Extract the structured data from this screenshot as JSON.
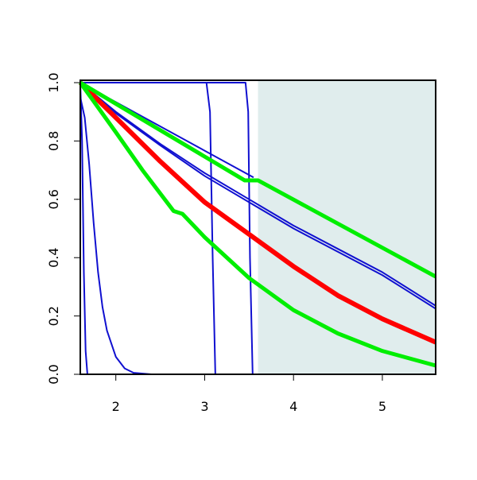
{
  "chart_data": {
    "type": "line",
    "xlim": [
      1.6,
      5.6
    ],
    "ylim": [
      0,
      1
    ],
    "xticks": [
      2,
      3,
      4,
      5
    ],
    "yticks": [
      {
        "value": 0,
        "label": "0.0"
      },
      {
        "value": 0.2,
        "label": "0.2"
      },
      {
        "value": 0.4,
        "label": "0.4"
      },
      {
        "value": 0.6,
        "label": "0.6"
      },
      {
        "value": 0.8,
        "label": "0.8"
      },
      {
        "value": 1,
        "label": "1.0"
      }
    ],
    "shaded_x": [
      3.6,
      5.6
    ],
    "shade_color": "#e0eded",
    "series": [
      {
        "color": "#1010d0",
        "width": 2,
        "x": [
          1.6,
          2,
          2.5,
          3,
          3.5,
          4,
          4.5,
          5,
          5.6
        ],
        "values": [
          1,
          0.9,
          0.79,
          0.69,
          0.6,
          0.51,
          0.43,
          0.35,
          0.235
        ]
      },
      {
        "color": "#1010d0",
        "width": 2,
        "x": [
          1.6,
          2,
          2.5,
          3,
          3.5,
          4,
          4.5,
          5,
          5.6
        ],
        "values": [
          1,
          0.895,
          0.785,
          0.68,
          0.59,
          0.5,
          0.42,
          0.34,
          0.225
        ]
      },
      {
        "color": "#1010d0",
        "width": 2,
        "x": [
          1.6,
          3.55
        ],
        "values": [
          1,
          0.675
        ]
      },
      {
        "color": "#1010d0",
        "width": 2,
        "x": [
          1.6,
          3.02,
          3.06,
          3.09,
          3.12,
          5.6
        ],
        "values": [
          1,
          1,
          0.9,
          0.4,
          0,
          0
        ]
      },
      {
        "color": "#1010d0",
        "width": 2,
        "x": [
          1.6,
          3.46,
          3.49,
          3.51,
          3.54,
          5.6
        ],
        "values": [
          1,
          1,
          0.9,
          0.4,
          0,
          0
        ]
      },
      {
        "color": "#1010d0",
        "width": 2,
        "x": [
          1.6,
          1.62,
          1.64,
          1.66,
          1.68,
          1.75
        ],
        "values": [
          1,
          0.8,
          0.35,
          0.08,
          0,
          0
        ]
      },
      {
        "color": "#1010d0",
        "width": 2,
        "x": [
          1.6,
          1.65,
          1.7,
          1.75,
          1.8,
          1.85,
          1.9,
          2,
          2.1,
          2.2,
          2.4
        ],
        "values": [
          0.95,
          0.88,
          0.72,
          0.52,
          0.35,
          0.23,
          0.15,
          0.06,
          0.02,
          0.005,
          0
        ]
      },
      {
        "color": "#ff0000",
        "width": 6,
        "x": [
          1.6,
          2,
          2.5,
          3,
          3.5,
          4,
          4.5,
          5,
          5.6
        ],
        "values": [
          1,
          0.88,
          0.73,
          0.59,
          0.48,
          0.37,
          0.27,
          0.19,
          0.11
        ]
      },
      {
        "color": "#00ee00",
        "width": 5,
        "x": [
          1.6,
          3.45,
          3.6,
          5.6
        ],
        "values": [
          1,
          0.665,
          0.665,
          0.335
        ]
      },
      {
        "color": "#00ee00",
        "width": 5,
        "x": [
          1.6,
          2,
          2.3,
          2.65,
          2.75,
          3,
          3.5,
          4,
          4.5,
          5,
          5.6
        ],
        "values": [
          1,
          0.83,
          0.7,
          0.56,
          0.55,
          0.47,
          0.33,
          0.22,
          0.14,
          0.08,
          0.03
        ]
      }
    ]
  }
}
